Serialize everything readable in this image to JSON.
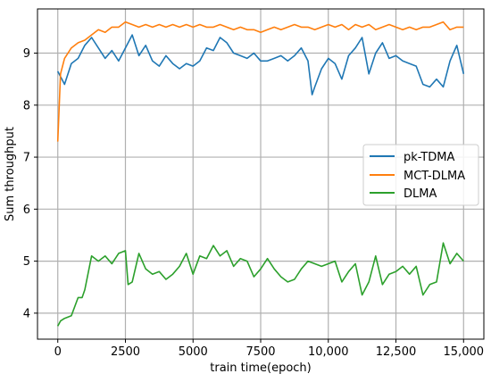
{
  "chart_data": {
    "type": "line",
    "title": "",
    "xlabel": "train time(epoch)",
    "ylabel": "Sum throughput",
    "xlim": [
      -750,
      15750
    ],
    "ylim": [
      3.5,
      9.85
    ],
    "xticks": [
      0,
      2500,
      5000,
      7500,
      10000,
      12500,
      15000
    ],
    "xtick_labels": [
      "0",
      "2500",
      "5000",
      "7500",
      "10,000",
      "12,500",
      "15,000"
    ],
    "yticks": [
      4,
      5,
      6,
      7,
      8,
      9
    ],
    "ytick_labels": [
      "4",
      "5",
      "6",
      "7",
      "8",
      "9"
    ],
    "grid": true,
    "legend_position": "center-right",
    "series": [
      {
        "name": "pk-TDMA",
        "color": "#1f77b4",
        "x": [
          0,
          100,
          250,
          500,
          750,
          1000,
          1250,
          1500,
          1750,
          2000,
          2250,
          2500,
          2750,
          3000,
          3250,
          3500,
          3750,
          4000,
          4250,
          4500,
          4750,
          5000,
          5250,
          5500,
          5750,
          6000,
          6250,
          6500,
          6750,
          7000,
          7250,
          7500,
          7750,
          8000,
          8250,
          8500,
          8750,
          9000,
          9250,
          9400,
          9500,
          9750,
          10000,
          10250,
          10500,
          10750,
          11000,
          11250,
          11500,
          11750,
          12000,
          12250,
          12500,
          12750,
          13000,
          13250,
          13500,
          13750,
          14000,
          14250,
          14500,
          14750,
          15000
        ],
        "values": [
          8.65,
          8.55,
          8.4,
          8.8,
          8.9,
          9.15,
          9.3,
          9.1,
          8.9,
          9.05,
          8.85,
          9.1,
          9.35,
          8.95,
          9.15,
          8.85,
          8.75,
          8.95,
          8.8,
          8.7,
          8.8,
          8.75,
          8.85,
          9.1,
          9.05,
          9.3,
          9.2,
          9.0,
          8.95,
          8.9,
          9.0,
          8.85,
          8.85,
          8.9,
          8.95,
          8.85,
          8.95,
          9.1,
          8.85,
          8.2,
          8.35,
          8.7,
          8.9,
          8.8,
          8.5,
          8.95,
          9.1,
          9.3,
          8.6,
          9.0,
          9.2,
          8.9,
          8.95,
          8.85,
          8.8,
          8.75,
          8.4,
          8.35,
          8.5,
          8.35,
          8.85,
          9.15,
          8.6
        ]
      },
      {
        "name": "MCT-DLMA",
        "color": "#ff7f0e",
        "x": [
          0,
          100,
          250,
          500,
          750,
          1000,
          1250,
          1500,
          1750,
          2000,
          2250,
          2500,
          2750,
          3000,
          3250,
          3500,
          3750,
          4000,
          4250,
          4500,
          4750,
          5000,
          5250,
          5500,
          5750,
          6000,
          6250,
          6500,
          6750,
          7000,
          7250,
          7500,
          7750,
          8000,
          8250,
          8500,
          8750,
          9000,
          9250,
          9500,
          9750,
          10000,
          10250,
          10500,
          10750,
          11000,
          11250,
          11500,
          11750,
          12000,
          12250,
          12500,
          12750,
          13000,
          13250,
          13500,
          13750,
          14000,
          14250,
          14500,
          14750,
          15000
        ],
        "values": [
          7.3,
          8.6,
          8.9,
          9.1,
          9.2,
          9.25,
          9.35,
          9.45,
          9.4,
          9.5,
          9.5,
          9.6,
          9.55,
          9.5,
          9.55,
          9.5,
          9.55,
          9.5,
          9.55,
          9.5,
          9.55,
          9.5,
          9.55,
          9.5,
          9.5,
          9.55,
          9.5,
          9.45,
          9.5,
          9.45,
          9.45,
          9.4,
          9.45,
          9.5,
          9.45,
          9.5,
          9.55,
          9.5,
          9.5,
          9.45,
          9.5,
          9.55,
          9.5,
          9.55,
          9.45,
          9.55,
          9.5,
          9.55,
          9.45,
          9.5,
          9.55,
          9.5,
          9.45,
          9.5,
          9.45,
          9.5,
          9.5,
          9.55,
          9.6,
          9.45,
          9.5,
          9.5
        ]
      },
      {
        "name": "DLMA",
        "color": "#2ca02c",
        "x": [
          0,
          100,
          250,
          500,
          750,
          900,
          1000,
          1250,
          1500,
          1750,
          2000,
          2250,
          2500,
          2600,
          2750,
          3000,
          3250,
          3500,
          3750,
          4000,
          4250,
          4500,
          4750,
          5000,
          5250,
          5500,
          5750,
          6000,
          6250,
          6500,
          6750,
          7000,
          7250,
          7500,
          7750,
          8000,
          8250,
          8500,
          8750,
          9000,
          9250,
          9500,
          9750,
          10000,
          10250,
          10500,
          10750,
          11000,
          11250,
          11500,
          11750,
          12000,
          12250,
          12500,
          12750,
          13000,
          13250,
          13500,
          13750,
          14000,
          14250,
          14500,
          14750,
          15000
        ],
        "values": [
          3.75,
          3.85,
          3.9,
          3.95,
          4.3,
          4.3,
          4.45,
          5.1,
          5.0,
          5.1,
          4.95,
          5.15,
          5.2,
          4.55,
          4.6,
          5.15,
          4.85,
          4.75,
          4.8,
          4.65,
          4.75,
          4.9,
          5.15,
          4.75,
          5.1,
          5.05,
          5.3,
          5.1,
          5.2,
          4.9,
          5.05,
          5.0,
          4.7,
          4.85,
          5.05,
          4.85,
          4.7,
          4.6,
          4.65,
          4.85,
          5.0,
          4.95,
          4.9,
          4.95,
          5.0,
          4.6,
          4.8,
          4.95,
          4.35,
          4.6,
          5.1,
          4.55,
          4.75,
          4.8,
          4.9,
          4.75,
          4.9,
          4.35,
          4.55,
          4.6,
          5.35,
          4.95,
          5.15,
          5.0
        ]
      }
    ]
  }
}
